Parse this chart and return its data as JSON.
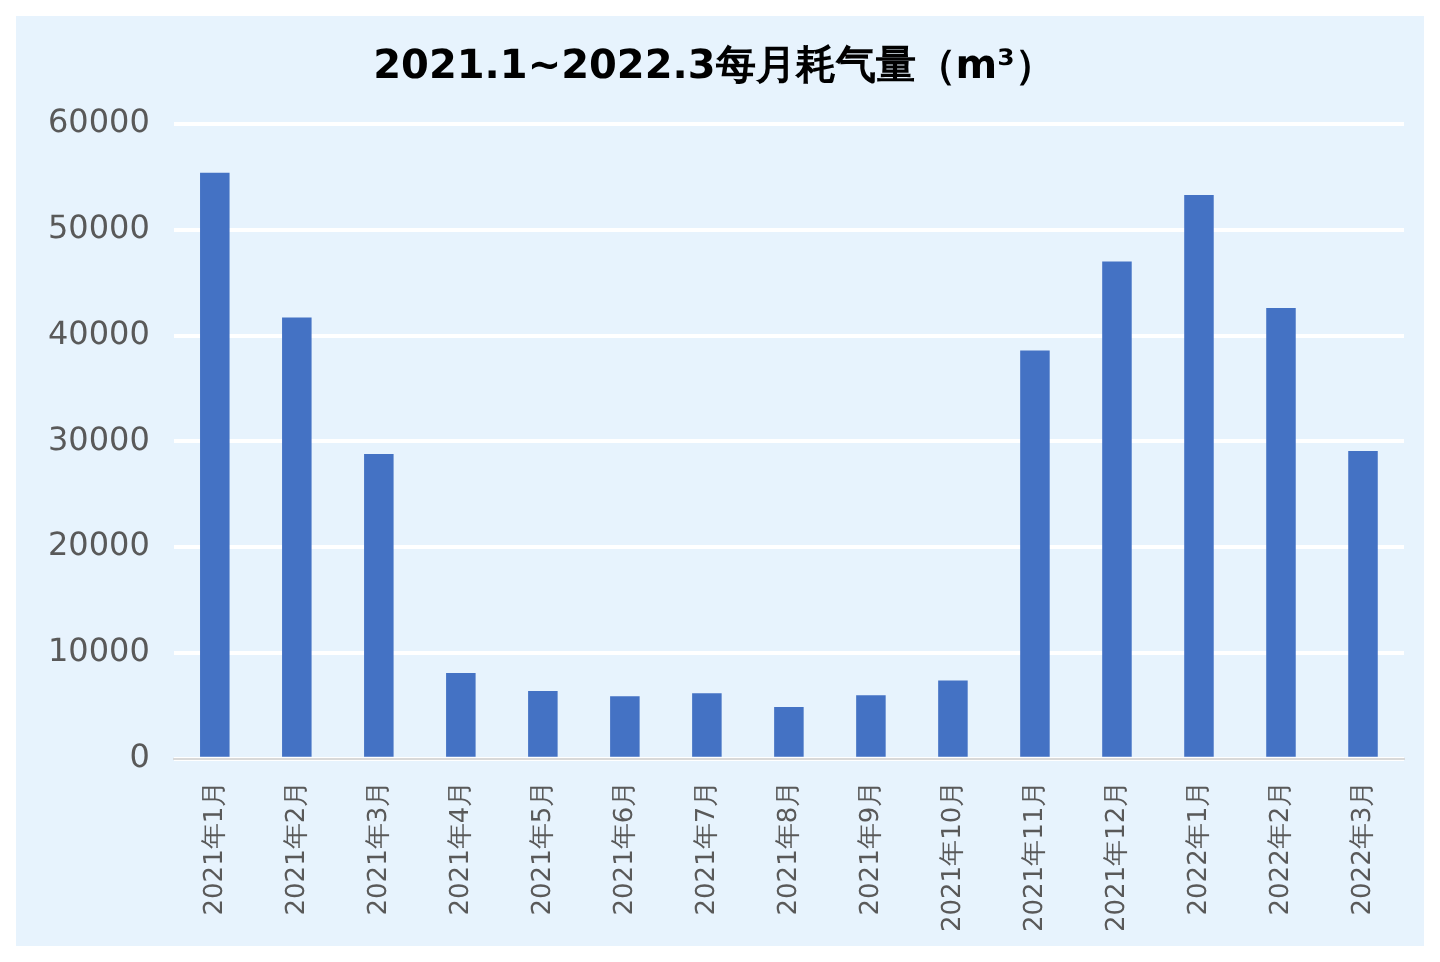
{
  "chart_data": {
    "type": "bar",
    "title": "2021.1~2022.3每月耗气量（m³）",
    "categories": [
      "2021年1月",
      "2021年2月",
      "2021年3月",
      "2021年4月",
      "2021年5月",
      "2021年6月",
      "2021年7月",
      "2021年8月",
      "2021年9月",
      "2021年10月",
      "2021年11月",
      "2021年12月",
      "2022年1月",
      "2022年2月",
      "2022年3月"
    ],
    "values": [
      55400,
      41700,
      28800,
      8100,
      6400,
      5900,
      6200,
      4900,
      6000,
      7400,
      38600,
      47000,
      53300,
      42600,
      29100
    ],
    "color": "#4472c4",
    "ylim": [
      0,
      60000
    ],
    "yticks": [
      0,
      10000,
      20000,
      30000,
      40000,
      50000,
      60000
    ],
    "grid": "y"
  }
}
